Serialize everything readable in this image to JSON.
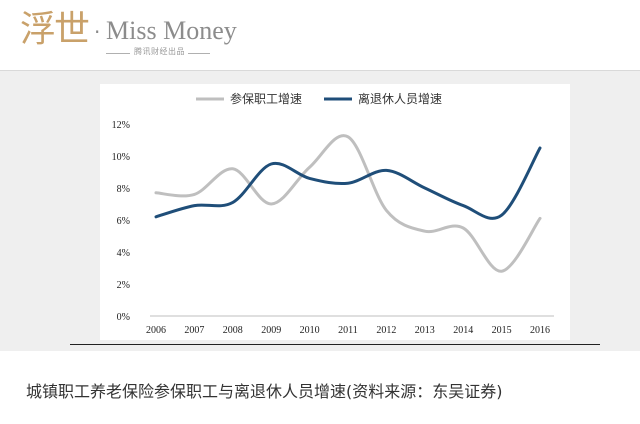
{
  "header": {
    "brand_cn": "浮世",
    "brand_dot": "·",
    "brand_en": "Miss Money",
    "brand_sub": "腾讯财经出品"
  },
  "caption": "城镇职工养老保险参保职工与离退休人员增速(资料来源：东吴证券)",
  "colors": {
    "series1": "#bfbfbf",
    "series2": "#1f4e79",
    "axis": "#bfbfbf"
  },
  "chart_data": {
    "type": "line",
    "title": "",
    "xlabel": "",
    "ylabel": "",
    "x": [
      "2006",
      "2007",
      "2008",
      "2009",
      "2010",
      "2011",
      "2012",
      "2013",
      "2014",
      "2015",
      "2016"
    ],
    "ylim": [
      0,
      12
    ],
    "yticks": [
      "0%",
      "2%",
      "4%",
      "6%",
      "8%",
      "10%",
      "12%"
    ],
    "ytick_values": [
      0,
      2,
      4,
      6,
      8,
      10,
      12
    ],
    "grid": false,
    "legend_position": "top",
    "smooth": true,
    "series": [
      {
        "name": "参保职工增速",
        "values": [
          7.7,
          7.6,
          9.2,
          7.0,
          9.3,
          11.2,
          6.6,
          5.3,
          5.5,
          2.8,
          6.1
        ]
      },
      {
        "name": "离退休人员增速",
        "values": [
          6.2,
          6.9,
          7.1,
          9.5,
          8.6,
          8.3,
          9.1,
          8.0,
          6.9,
          6.3,
          10.5
        ]
      }
    ]
  }
}
